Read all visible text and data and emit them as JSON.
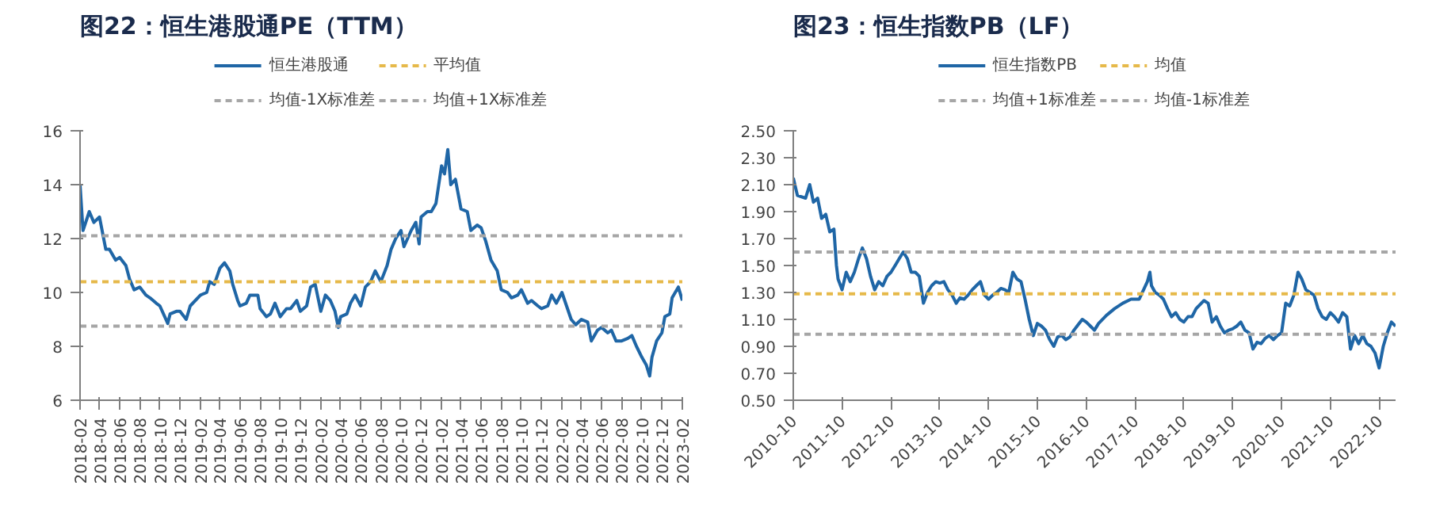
{
  "chart_data": [
    {
      "type": "line",
      "title": "图22：恒生港股通PE（TTM）",
      "legend": "top",
      "grid": false,
      "marker": "none",
      "line_style": "solid",
      "xlim": [
        "2018-02",
        "2023-02"
      ],
      "xticks": [
        "2018-02",
        "2018-04",
        "2018-06",
        "2018-08",
        "2018-10",
        "2018-12",
        "2019-02",
        "2019-04",
        "2019-06",
        "2019-08",
        "2019-10",
        "2019-12",
        "2020-02",
        "2020-04",
        "2020-06",
        "2020-08",
        "2020-10",
        "2020-12",
        "2021-02",
        "2021-04",
        "2021-06",
        "2021-08",
        "2021-10",
        "2021-12",
        "2022-02",
        "2022-04",
        "2022-06",
        "2022-08",
        "2022-10",
        "2022-12",
        "2023-02"
      ],
      "ylim": [
        6,
        16
      ],
      "yticks": [
        6,
        8,
        10,
        12,
        14,
        16
      ],
      "series": [
        {
          "name": "恒生港股通",
          "color": "#1f66a6",
          "x": [
            "2018-02-01",
            "2018-02-10",
            "2018-03-01",
            "2018-03-15",
            "2018-04-01",
            "2018-04-20",
            "2018-05-01",
            "2018-05-20",
            "2018-06-01",
            "2018-06-20",
            "2018-07-01",
            "2018-07-15",
            "2018-08-01",
            "2018-08-20",
            "2018-09-01",
            "2018-09-20",
            "2018-10-01",
            "2018-10-25",
            "2018-11-01",
            "2018-11-20",
            "2018-12-01",
            "2018-12-20",
            "2019-01-01",
            "2019-02-01",
            "2019-02-20",
            "2019-03-01",
            "2019-03-15",
            "2019-04-01",
            "2019-04-15",
            "2019-05-01",
            "2019-05-10",
            "2019-05-25",
            "2019-06-01",
            "2019-06-20",
            "2019-07-01",
            "2019-07-25",
            "2019-08-01",
            "2019-08-20",
            "2019-09-01",
            "2019-09-15",
            "2019-10-01",
            "2019-10-20",
            "2019-11-01",
            "2019-11-20",
            "2019-12-01",
            "2019-12-20",
            "2020-01-01",
            "2020-01-15",
            "2020-02-01",
            "2020-02-15",
            "2020-03-01",
            "2020-03-15",
            "2020-03-25",
            "2020-04-01",
            "2020-04-20",
            "2020-05-01",
            "2020-05-15",
            "2020-06-01",
            "2020-06-15",
            "2020-07-01",
            "2020-07-15",
            "2020-08-01",
            "2020-08-20",
            "2020-09-01",
            "2020-09-15",
            "2020-10-01",
            "2020-10-10",
            "2020-11-01",
            "2020-11-15",
            "2020-11-25",
            "2020-12-01",
            "2020-12-20",
            "2021-01-01",
            "2021-01-15",
            "2021-02-01",
            "2021-02-10",
            "2021-02-20",
            "2021-03-01",
            "2021-03-15",
            "2021-04-01",
            "2021-04-20",
            "2021-05-01",
            "2021-05-20",
            "2021-06-01",
            "2021-06-15",
            "2021-07-01",
            "2021-07-20",
            "2021-08-01",
            "2021-08-20",
            "2021-09-01",
            "2021-09-20",
            "2021-10-01",
            "2021-10-20",
            "2021-11-01",
            "2021-11-20",
            "2021-12-01",
            "2021-12-20",
            "2022-01-01",
            "2022-01-15",
            "2022-02-01",
            "2022-02-15",
            "2022-03-01",
            "2022-03-15",
            "2022-04-01",
            "2022-04-20",
            "2022-05-01",
            "2022-05-20",
            "2022-06-01",
            "2022-06-20",
            "2022-07-01",
            "2022-07-15",
            "2022-08-01",
            "2022-08-20",
            "2022-09-01",
            "2022-09-15",
            "2022-10-01",
            "2022-10-15",
            "2022-10-25",
            "2022-11-01",
            "2022-11-15",
            "2022-12-01",
            "2022-12-10",
            "2022-12-25",
            "2023-01-01",
            "2023-01-20",
            "2023-02-01"
          ],
          "values": [
            14.0,
            12.3,
            13.0,
            12.6,
            12.8,
            11.6,
            11.6,
            11.2,
            11.3,
            11.0,
            10.5,
            10.1,
            10.2,
            9.9,
            9.8,
            9.6,
            9.5,
            8.85,
            9.2,
            9.3,
            9.3,
            9.0,
            9.5,
            9.9,
            10.0,
            10.4,
            10.3,
            10.9,
            11.1,
            10.8,
            10.3,
            9.7,
            9.5,
            9.6,
            9.9,
            9.9,
            9.4,
            9.1,
            9.2,
            9.6,
            9.1,
            9.4,
            9.4,
            9.7,
            9.3,
            9.5,
            10.2,
            10.3,
            9.3,
            9.9,
            9.7,
            9.3,
            8.7,
            9.1,
            9.2,
            9.6,
            9.9,
            9.5,
            10.2,
            10.4,
            10.8,
            10.4,
            11.0,
            11.6,
            12.0,
            12.3,
            11.7,
            12.3,
            12.6,
            11.8,
            12.8,
            13.0,
            13.0,
            13.3,
            14.7,
            14.4,
            15.3,
            14.0,
            14.2,
            13.1,
            13.0,
            12.3,
            12.5,
            12.4,
            11.9,
            11.2,
            10.8,
            10.1,
            10.0,
            9.8,
            9.9,
            10.1,
            9.6,
            9.7,
            9.5,
            9.4,
            9.5,
            9.9,
            9.6,
            10.0,
            9.5,
            9.0,
            8.8,
            9.0,
            8.9,
            8.2,
            8.6,
            8.7,
            8.5,
            8.6,
            8.2,
            8.2,
            8.3,
            8.4,
            8.0,
            7.6,
            7.3,
            6.9,
            7.6,
            8.2,
            8.5,
            9.1,
            9.2,
            9.8,
            10.2,
            9.7
          ]
        }
      ],
      "ref_lines": [
        {
          "axis": "y",
          "value": 10.4,
          "label": "平均值",
          "color": "#e6b94a",
          "line_style": "dashed"
        },
        {
          "axis": "y",
          "value": 8.75,
          "label": "均值-1X标准差",
          "color": "#a6a6a6",
          "line_style": "dashed"
        },
        {
          "axis": "y",
          "value": 12.1,
          "label": "均值+1X标准差",
          "color": "#a6a6a6",
          "line_style": "dashed"
        }
      ]
    },
    {
      "type": "line",
      "title": "图23：恒生指数PB（LF）",
      "legend": "top",
      "grid": false,
      "marker": "none",
      "line_style": "solid",
      "xlim": [
        "2010-10",
        "2023-02"
      ],
      "xticks": [
        "2010-10",
        "2011-10",
        "2012-10",
        "2013-10",
        "2014-10",
        "2015-10",
        "2016-10",
        "2017-10",
        "2018-10",
        "2019-10",
        "2020-10",
        "2021-10",
        "2022-10"
      ],
      "ylim": [
        0.5,
        2.5
      ],
      "yticks": [
        {
          "value": 0.5,
          "label": "0.50"
        },
        {
          "value": 0.7,
          "label": "0.70"
        },
        {
          "value": 0.9,
          "label": "0.90"
        },
        {
          "value": 1.1,
          "label": "1.10"
        },
        {
          "value": 1.3,
          "label": "1.30"
        },
        {
          "value": 1.5,
          "label": "1.50"
        },
        {
          "value": 1.7,
          "label": "1.70"
        },
        {
          "value": 1.9,
          "label": "1.90"
        },
        {
          "value": 2.1,
          "label": "2.10"
        },
        {
          "value": 2.3,
          "label": "2.30"
        },
        {
          "value": 2.5,
          "label": "2.50"
        }
      ],
      "series": [
        {
          "name": "恒生指数PB",
          "color": "#1f66a6",
          "x": [
            "2010-10",
            "2010-11",
            "2011-01",
            "2011-02",
            "2011-03",
            "2011-04",
            "2011-05",
            "2011-06",
            "2011-07",
            "2011-08",
            "2011-08-20",
            "2011-09",
            "2011-10",
            "2011-11",
            "2011-12",
            "2012-01",
            "2012-02",
            "2012-03",
            "2012-04",
            "2012-05",
            "2012-06",
            "2012-07",
            "2012-08",
            "2012-09",
            "2012-10",
            "2012-11",
            "2012-12",
            "2013-01",
            "2013-02",
            "2013-03",
            "2013-04",
            "2013-05",
            "2013-06",
            "2013-07",
            "2013-08",
            "2013-09",
            "2013-10",
            "2013-11",
            "2013-12",
            "2014-01",
            "2014-02",
            "2014-03",
            "2014-04",
            "2014-05",
            "2014-06",
            "2014-07",
            "2014-08",
            "2014-09",
            "2014-10",
            "2014-11",
            "2014-12",
            "2015-01",
            "2015-02",
            "2015-03",
            "2015-04",
            "2015-05",
            "2015-06",
            "2015-07",
            "2015-08",
            "2015-09",
            "2015-10",
            "2015-11",
            "2015-12",
            "2016-01",
            "2016-02",
            "2016-03",
            "2016-04",
            "2016-05",
            "2016-06",
            "2016-07",
            "2016-08",
            "2016-09",
            "2016-10",
            "2016-11",
            "2016-12",
            "2017-01",
            "2017-03",
            "2017-05",
            "2017-07",
            "2017-09",
            "2017-11",
            "2018-01",
            "2018-01-20",
            "2018-02",
            "2018-03",
            "2018-04",
            "2018-05",
            "2018-06",
            "2018-07",
            "2018-08",
            "2018-09",
            "2018-10",
            "2018-11",
            "2018-12",
            "2019-01",
            "2019-03",
            "2019-04",
            "2019-05",
            "2019-06",
            "2019-07",
            "2019-08",
            "2019-09",
            "2019-10",
            "2019-11",
            "2019-12",
            "2020-01",
            "2020-02",
            "2020-03",
            "2020-04",
            "2020-05",
            "2020-06",
            "2020-07",
            "2020-08",
            "2020-09",
            "2020-10",
            "2020-11",
            "2020-12",
            "2021-01",
            "2021-02",
            "2021-03",
            "2021-04",
            "2021-05",
            "2021-06",
            "2021-07",
            "2021-08",
            "2021-09",
            "2021-10",
            "2021-11",
            "2021-12",
            "2022-01",
            "2022-02",
            "2022-03",
            "2022-04",
            "2022-05",
            "2022-06",
            "2022-07",
            "2022-08",
            "2022-09",
            "2022-10",
            "2022-11",
            "2022-12",
            "2023-01",
            "2023-02"
          ],
          "values": [
            2.15,
            2.02,
            2.0,
            2.1,
            1.97,
            2.0,
            1.85,
            1.88,
            1.75,
            1.77,
            1.5,
            1.4,
            1.32,
            1.45,
            1.38,
            1.45,
            1.55,
            1.63,
            1.55,
            1.42,
            1.32,
            1.38,
            1.35,
            1.42,
            1.45,
            1.5,
            1.55,
            1.6,
            1.55,
            1.45,
            1.45,
            1.42,
            1.22,
            1.3,
            1.35,
            1.38,
            1.37,
            1.38,
            1.32,
            1.28,
            1.22,
            1.26,
            1.25,
            1.28,
            1.32,
            1.35,
            1.38,
            1.28,
            1.25,
            1.28,
            1.3,
            1.33,
            1.32,
            1.3,
            1.45,
            1.4,
            1.38,
            1.25,
            1.1,
            0.98,
            1.07,
            1.05,
            1.02,
            0.95,
            0.9,
            0.97,
            0.98,
            0.95,
            0.97,
            1.02,
            1.06,
            1.1,
            1.08,
            1.05,
            1.02,
            1.07,
            1.13,
            1.18,
            1.22,
            1.25,
            1.25,
            1.38,
            1.45,
            1.35,
            1.3,
            1.28,
            1.25,
            1.18,
            1.12,
            1.15,
            1.1,
            1.08,
            1.12,
            1.12,
            1.18,
            1.24,
            1.22,
            1.08,
            1.12,
            1.05,
            1.0,
            1.02,
            1.03,
            1.05,
            1.08,
            1.02,
            1.0,
            0.88,
            0.93,
            0.92,
            0.96,
            0.98,
            0.95,
            0.98,
            1.0,
            1.22,
            1.2,
            1.28,
            1.45,
            1.4,
            1.32,
            1.3,
            1.28,
            1.18,
            1.12,
            1.1,
            1.15,
            1.12,
            1.08,
            1.15,
            1.12,
            0.88,
            0.98,
            0.92,
            0.98,
            0.92,
            0.9,
            0.85,
            0.74,
            0.9,
            1.0,
            1.08,
            1.05
          ]
        }
      ],
      "ref_lines": [
        {
          "axis": "y",
          "value": 1.29,
          "label": "均值",
          "color": "#e6b94a",
          "line_style": "dashed"
        },
        {
          "axis": "y",
          "value": 1.6,
          "label": "均值+1标准差",
          "color": "#a6a6a6",
          "line_style": "dashed"
        },
        {
          "axis": "y",
          "value": 0.99,
          "label": "均值-1标准差",
          "color": "#a6a6a6",
          "line_style": "dashed"
        }
      ]
    }
  ]
}
